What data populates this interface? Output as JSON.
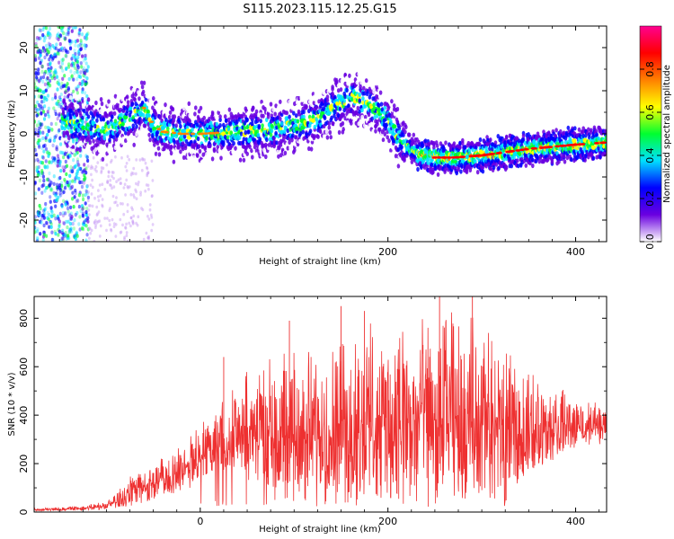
{
  "figure_title": "S115.2023.115.12.25.G15",
  "chart_data": [
    {
      "type": "heatmap",
      "title": "",
      "xlabel": "Height of straight line (km)",
      "ylabel": "Frequency (Hz)",
      "xlim": [
        -177,
        433
      ],
      "ylim": [
        -25,
        25
      ],
      "xticks": [
        0,
        200,
        400
      ],
      "yticks": [
        -20,
        -10,
        0,
        10,
        20
      ],
      "ridge": {
        "x": [
          -177,
          -150,
          -120,
          -100,
          -80,
          -60,
          -50,
          -40,
          -20,
          0,
          40,
          80,
          100,
          120,
          140,
          160,
          170,
          180,
          200,
          215,
          230,
          250,
          270,
          300,
          350,
          400,
          433
        ],
        "frequency_hz": [
          3,
          3,
          2,
          1,
          3,
          6,
          2,
          0.5,
          0,
          0,
          0.5,
          1,
          2,
          3,
          6,
          8.5,
          8,
          7,
          3,
          -2,
          -4.5,
          -5.5,
          -5.5,
          -5,
          -3.5,
          -2.5,
          -2
        ]
      },
      "colorbar": {
        "label": "Normalized spectral amplitude",
        "range": [
          0.0,
          1.0
        ],
        "ticks": [
          "0.0",
          "0.2",
          "0.4",
          "0.6",
          "0.8"
        ],
        "colors": [
          "#ffffff",
          "#6a00e0",
          "#0000ff",
          "#00e0ff",
          "#00ff30",
          "#ffff00",
          "#ff8000",
          "#ff0000",
          "#ff0090"
        ]
      },
      "series_color": "#6a00e0"
    },
    {
      "type": "line",
      "title": "",
      "xlabel": "Height of straight line (km)",
      "ylabel": "SNR (10 * v/v)",
      "xlim": [
        -177,
        433
      ],
      "ylim": [
        0,
        890
      ],
      "xticks": [
        0,
        200,
        400
      ],
      "yticks": [
        0,
        200,
        400,
        600,
        800
      ],
      "series_color": "#ee3030",
      "envelope": {
        "x": [
          -177,
          -150,
          -120,
          -100,
          -80,
          -60,
          -40,
          -20,
          0,
          10,
          20,
          40,
          60,
          80,
          100,
          120,
          140,
          160,
          180,
          200,
          220,
          240,
          260,
          280,
          300,
          320,
          340,
          360,
          380,
          400,
          420,
          433
        ],
        "low": [
          5,
          5,
          8,
          10,
          20,
          40,
          60,
          80,
          120,
          150,
          180,
          150,
          120,
          100,
          80,
          80,
          80,
          60,
          60,
          50,
          60,
          60,
          50,
          50,
          60,
          80,
          120,
          180,
          220,
          260,
          280,
          280
        ],
        "high": [
          15,
          20,
          30,
          45,
          130,
          190,
          230,
          290,
          380,
          420,
          470,
          560,
          620,
          650,
          660,
          670,
          700,
          760,
          800,
          760,
          780,
          800,
          830,
          820,
          800,
          700,
          600,
          560,
          520,
          480,
          460,
          450
        ],
        "spikes": [
          [
            25,
            640
          ],
          [
            95,
            790
          ],
          [
            150,
            850
          ],
          [
            175,
            830
          ],
          [
            255,
            890
          ],
          [
            290,
            890
          ]
        ]
      }
    }
  ]
}
